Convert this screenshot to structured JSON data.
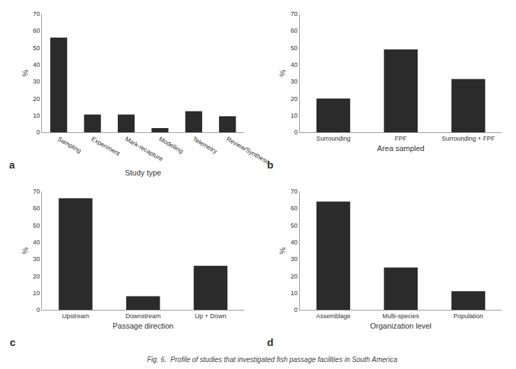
{
  "title": "Fig. 6.  Profile of studies that investigated fish passage facilities in South America",
  "chart_data": [
    {
      "type": "bar",
      "title": "a",
      "xlabel": "Study type",
      "ylabel": "%",
      "categories": [
        "Sampling",
        "Experiment",
        "Mark-recapture",
        "Modelling",
        "Telemetry",
        "Review/Synthesis"
      ],
      "values": [
        56,
        10.5,
        10.5,
        2.5,
        12.5,
        9.5
      ],
      "color": "#2b2b2b",
      "ylim": [
        0,
        70
      ],
      "yticks": [
        0,
        10,
        20,
        30,
        40,
        50,
        60,
        70
      ],
      "grid": false
    },
    {
      "type": "bar",
      "title": "b",
      "xlabel": "Area sampled",
      "ylabel": "%",
      "categories": [
        "Surrounding",
        "FPF",
        "Surrounding + FPF"
      ],
      "values": [
        20,
        49,
        31.5
      ],
      "color": "#2b2b2b",
      "ylim": [
        0,
        70
      ],
      "yticks": [
        0,
        10,
        20,
        30,
        40,
        50,
        60,
        70
      ],
      "grid": false
    },
    {
      "type": "bar",
      "title": "c",
      "xlabel": "Passage direction",
      "ylabel": "%",
      "categories": [
        "Upstream",
        "Downstream",
        "Up + Down"
      ],
      "values": [
        66,
        8,
        26
      ],
      "color": "#2b2b2b",
      "ylim": [
        0,
        70
      ],
      "yticks": [
        0,
        10,
        20,
        30,
        40,
        50,
        60,
        70
      ],
      "grid": false
    },
    {
      "type": "bar",
      "title": "d",
      "xlabel": "Organization level",
      "ylabel": "%",
      "categories": [
        "Assemblage",
        "Multi-species",
        "Population"
      ],
      "values": [
        64,
        25,
        11
      ],
      "color": "#2b2b2b",
      "ylim": [
        0,
        70
      ],
      "yticks": [
        0,
        10,
        20,
        30,
        40,
        50,
        60,
        70
      ],
      "grid": false
    }
  ]
}
